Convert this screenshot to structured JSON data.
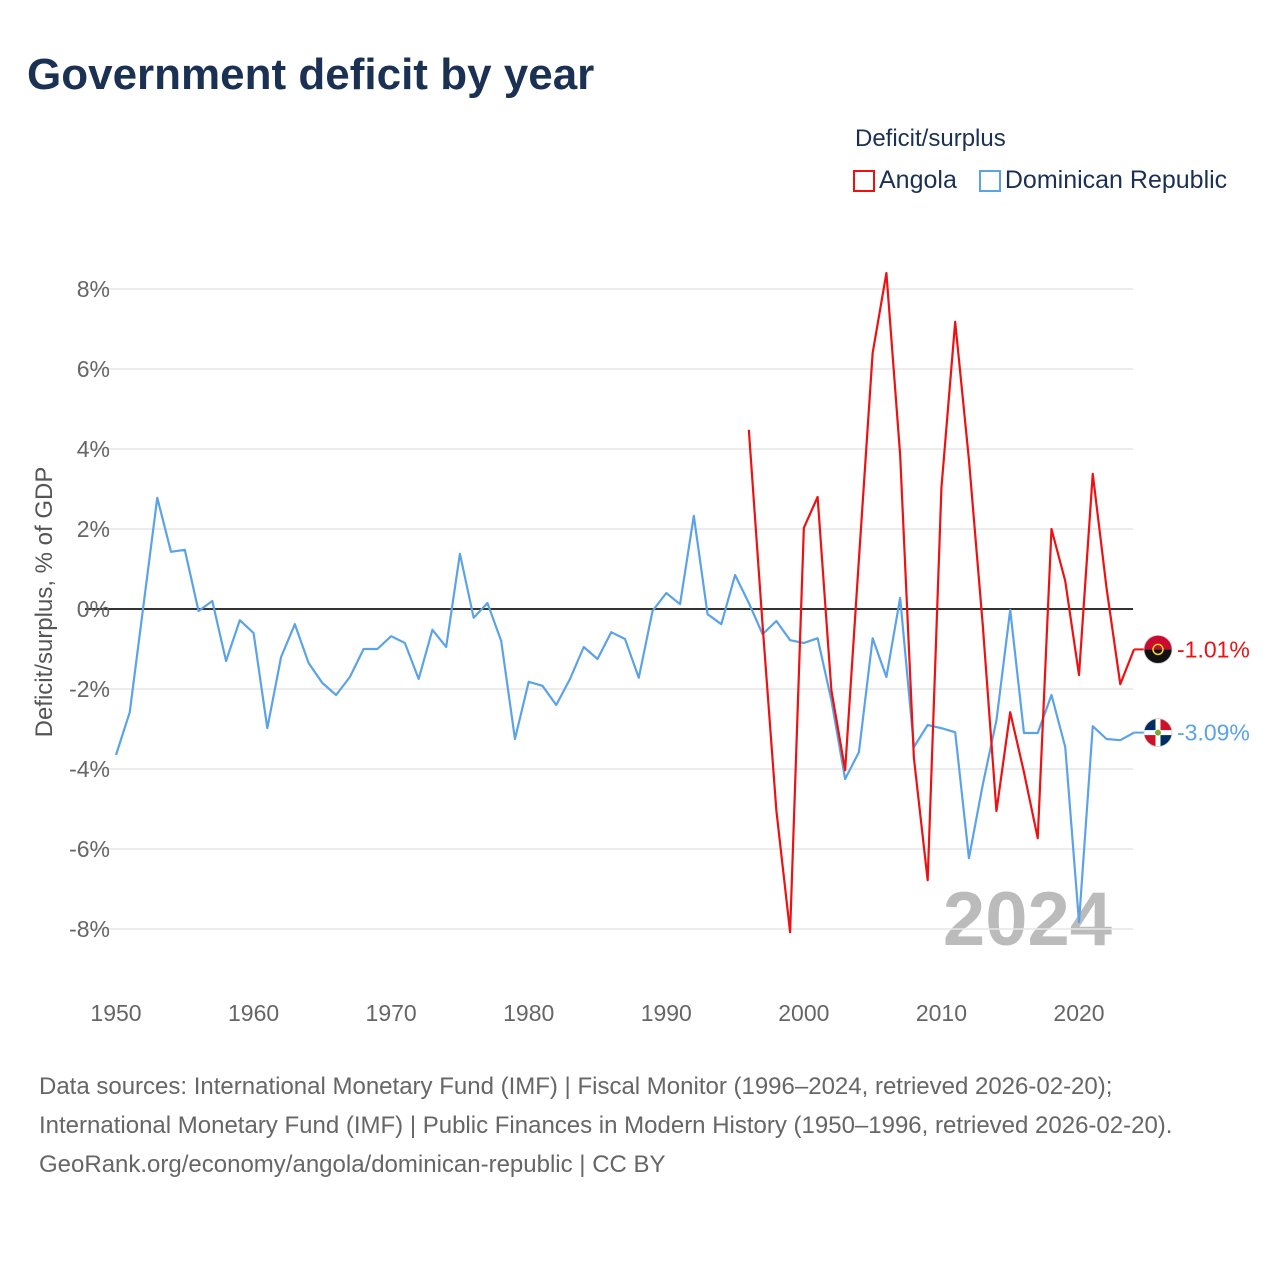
{
  "title": "Government deficit by year",
  "legend": {
    "title": "Deficit/surplus",
    "items": [
      {
        "label": "Angola",
        "color": "#ee1111"
      },
      {
        "label": "Dominican Republic",
        "color": "#5ba3e6"
      }
    ]
  },
  "chart_data": {
    "type": "line",
    "title": "Government deficit by year",
    "xlabel": "",
    "ylabel": "Deficit/surplus, % of GDP",
    "xlim": [
      1950,
      2024
    ],
    "ylim": [
      -8,
      8
    ],
    "xticks": [
      1950,
      1960,
      1970,
      1980,
      1990,
      2000,
      2010,
      2020
    ],
    "yticks": [
      8,
      6,
      4,
      2,
      0,
      -2,
      -4,
      -6,
      -8
    ],
    "ytick_labels": [
      "8%",
      "6%",
      "4%",
      "2%",
      "0%",
      "-2%",
      "-4%",
      "-6%",
      "-8%"
    ],
    "year_watermark": "2024",
    "series": [
      {
        "name": "Dominican Republic",
        "color": "#5ba3e6",
        "start": 1950,
        "end_label": "-3.09%",
        "values": [
          -3.65,
          -2.58,
          0.1,
          2.78,
          1.43,
          1.48,
          -0.05,
          0.2,
          -1.3,
          -0.28,
          -0.6,
          -2.98,
          -1.2,
          -0.38,
          -1.35,
          -1.85,
          -2.15,
          -1.7,
          -1.0,
          -1.0,
          -0.68,
          -0.85,
          -1.75,
          -0.52,
          -0.95,
          1.38,
          -0.22,
          0.15,
          -0.8,
          -3.25,
          -1.82,
          -1.92,
          -2.4,
          -1.75,
          -0.95,
          -1.25,
          -0.58,
          -0.75,
          -1.72,
          -0.05,
          0.4,
          0.12,
          2.33,
          -0.13,
          -0.38,
          0.85,
          0.15,
          -0.63,
          -0.3,
          -0.78,
          -0.85,
          -0.73,
          -2.28,
          -4.25,
          -3.58,
          -0.73,
          -1.7,
          0.28,
          -3.45,
          -2.9,
          -2.98,
          -3.08,
          -6.23,
          -4.4,
          -2.78,
          -0.02,
          -3.1,
          -3.1,
          -2.15,
          -3.45,
          -7.83,
          -2.93,
          -3.25,
          -3.28,
          -3.09
        ]
      },
      {
        "name": "Angola",
        "color": "#ee1111",
        "start": 1996,
        "end_label": "-1.01%",
        "values": [
          4.48,
          -0.4,
          -5.03,
          -8.08,
          2.03,
          2.8,
          -2.03,
          -4.03,
          1.23,
          6.4,
          8.4,
          3.85,
          -3.73,
          -6.78,
          3.03,
          7.18,
          3.73,
          -0.38,
          -5.05,
          -2.58,
          -4.08,
          -5.73,
          2.0,
          0.7,
          -1.65,
          3.38,
          0.53,
          -1.88,
          -1.01
        ]
      }
    ]
  },
  "footer": {
    "sources": "Data sources: International Monetary Fund (IMF) | Fiscal Monitor (1996–2024, retrieved 2026-02-20); International Monetary Fund (IMF) | Public Finances in Modern History (1950–1996, retrieved 2026-02-20).",
    "link": "GeoRank.org/economy/angola/dominican-republic | CC BY"
  }
}
